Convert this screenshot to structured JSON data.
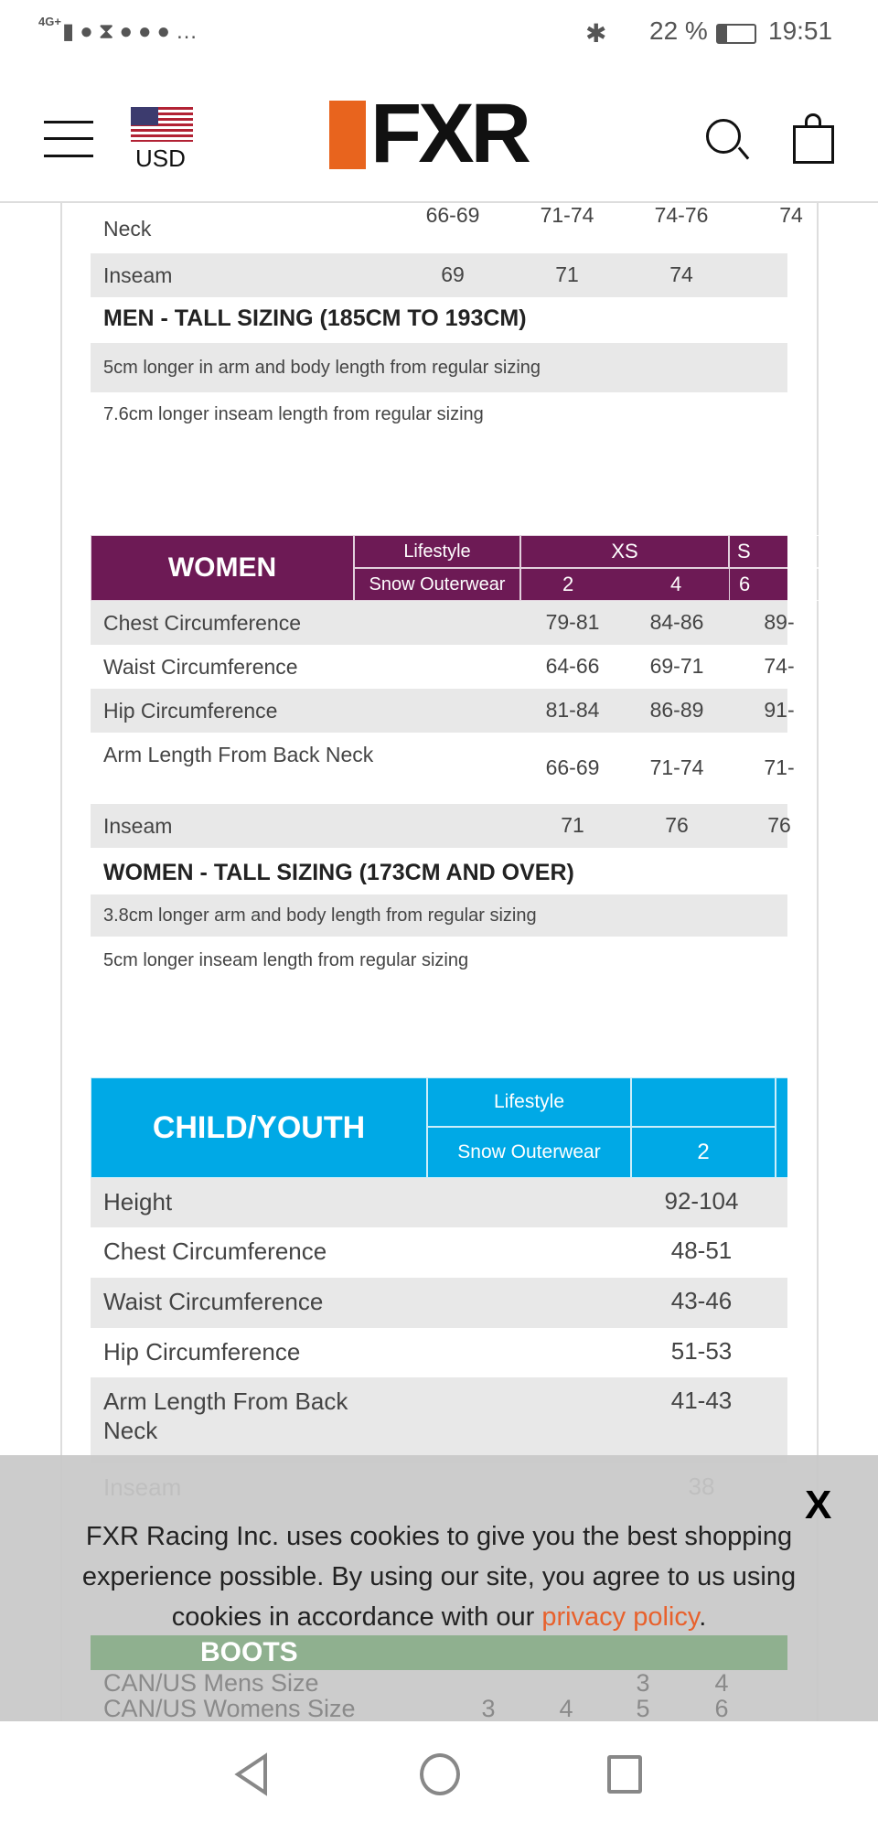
{
  "status_bar": {
    "network": "4G+",
    "battery": "22 %",
    "time": "19:51",
    "icons": [
      "signal-icon",
      "spotify-icon",
      "hourglass-icon",
      "facebook-icon",
      "snapchat-icon",
      "messenger-icon",
      "more-icon"
    ]
  },
  "header": {
    "currency": "USD",
    "logo": "FXR"
  },
  "men": {
    "partial_rows": [
      {
        "label": "Neck",
        "values": [
          "66-69",
          "71-74",
          "74-76",
          "74"
        ]
      },
      {
        "label": "Inseam",
        "values": [
          "69",
          "71",
          "74",
          ""
        ]
      }
    ],
    "tall_title": "MEN - TALL SIZING (185CM TO 193CM)",
    "tall_notes": [
      "5cm longer in arm and body length from regular sizing",
      "7.6cm longer inseam length from regular sizing"
    ]
  },
  "women": {
    "title": "WOMEN",
    "lifestyle": "Lifestyle",
    "snow": "Snow Outerwear",
    "size_groups": [
      "XS",
      "S"
    ],
    "sizes": [
      "2",
      "4",
      "6"
    ],
    "rows": [
      {
        "label": "Chest Circumference",
        "values": [
          "79-81",
          "84-86",
          "89-"
        ]
      },
      {
        "label": "Waist Circumference",
        "values": [
          "64-66",
          "69-71",
          "74-"
        ]
      },
      {
        "label": "Hip Circumference",
        "values": [
          "81-84",
          "86-89",
          "91-"
        ]
      },
      {
        "label": "Arm Length From Back Neck",
        "values": [
          "66-69",
          "71-74",
          "71-"
        ]
      },
      {
        "label": "Inseam",
        "values": [
          "71",
          "76",
          "76"
        ]
      }
    ],
    "tall_title": "WOMEN - TALL SIZING (173CM AND OVER)",
    "tall_notes": [
      "3.8cm longer arm and body length from regular sizing",
      "5cm longer inseam length from regular sizing"
    ]
  },
  "child": {
    "title": "CHILD/YOUTH",
    "lifestyle": "Lifestyle",
    "snow": "Snow Outerwear",
    "sizes": [
      "2"
    ],
    "rows": [
      {
        "label": "Height",
        "values": [
          "92-104"
        ]
      },
      {
        "label": "Chest Circumference",
        "values": [
          "48-51"
        ]
      },
      {
        "label": "Waist Circumference",
        "values": [
          "43-46"
        ]
      },
      {
        "label": "Hip Circumference",
        "values": [
          "51-53"
        ]
      },
      {
        "label": "Arm Length From Back Neck",
        "values": [
          "41-43"
        ]
      },
      {
        "label": "Inseam",
        "values": [
          "38"
        ]
      }
    ]
  },
  "boots": {
    "title": "BOOTS",
    "rows": [
      {
        "label": "CAN/US Mens Size",
        "values": [
          "3",
          "4"
        ]
      },
      {
        "label": "CAN/US Womens Size",
        "values": [
          "3",
          "4",
          "5",
          "6"
        ]
      }
    ]
  },
  "cookie": {
    "close": "X",
    "text": "FXR Racing Inc. uses cookies to give you the best shopping experience possible. By using our site, you agree to us using cookies in accordance with our ",
    "link": "privacy policy",
    "end": "."
  },
  "colors": {
    "women": "#6d1a55",
    "child": "#00a9e6",
    "boots": "#4a9a4a",
    "link": "#e8612c",
    "logo_orange": "#e8641e"
  }
}
